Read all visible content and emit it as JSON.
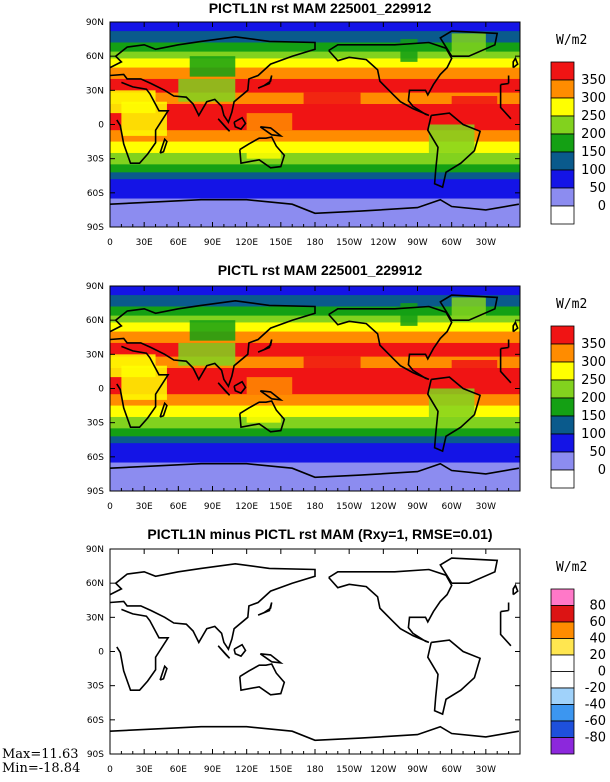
{
  "panels": [
    {
      "title": "PICTL1N rst MAM 225001_229912",
      "units": "W/m2",
      "colorbar": {
        "colors": [
          "#ffffff",
          "#8c8cf0",
          "#1414e6",
          "#0a5a8c",
          "#14a014",
          "#82d21e",
          "#ffff00",
          "#ff8c00",
          "#f01414"
        ],
        "labels": [
          "0",
          "50",
          "100",
          "150",
          "200",
          "250",
          "300",
          "350"
        ]
      },
      "kind": "field"
    },
    {
      "title": "PICTL rst MAM 225001_229912",
      "units": "W/m2",
      "colorbar": {
        "colors": [
          "#ffffff",
          "#8c8cf0",
          "#1414e6",
          "#0a5a8c",
          "#14a014",
          "#82d21e",
          "#ffff00",
          "#ff8c00",
          "#f01414"
        ],
        "labels": [
          "0",
          "50",
          "100",
          "150",
          "200",
          "250",
          "300",
          "350"
        ]
      },
      "kind": "field"
    },
    {
      "title": "PICTL1N minus PICTL rst MAM (Rxy=1, RMSE=0.01)",
      "units": "W/m2",
      "colorbar": {
        "colors": [
          "#8c28dc",
          "#1e50dc",
          "#3c96f0",
          "#a0d2fa",
          "#ffffff",
          "#ffffff",
          "#ffe650",
          "#ff8c00",
          "#dc1414",
          "#ff78c8"
        ],
        "labels": [
          "-80",
          "-60",
          "-40",
          "-20",
          "0",
          "20",
          "40",
          "60",
          "80"
        ]
      },
      "kind": "diff",
      "stats": {
        "max": "Max=11.63",
        "min": "Min=-18.84"
      }
    }
  ],
  "axes": {
    "lat_ticks": [
      "90N",
      "60N",
      "30N",
      "0",
      "30S",
      "60S",
      "90S"
    ],
    "lon_ticks": [
      "0",
      "30E",
      "60E",
      "90E",
      "120E",
      "150E",
      "180",
      "150W",
      "120W",
      "90W",
      "60W",
      "30W"
    ]
  },
  "chart_data": [
    {
      "type": "heatmap",
      "title": "PICTL1N rst MAM 225001_229912",
      "units": "W/m2",
      "xlim": [
        0,
        360
      ],
      "ylim": [
        -90,
        90
      ],
      "contour_levels": [
        0,
        50,
        100,
        150,
        200,
        250,
        300,
        350
      ],
      "zonal_mean_approx": {
        "lat": [
          90,
          75,
          60,
          45,
          30,
          15,
          0,
          -15,
          -30,
          -45,
          -60,
          -75,
          -90
        ],
        "rst": [
          40,
          110,
          180,
          270,
          330,
          360,
          355,
          350,
          310,
          230,
          120,
          40,
          25
        ]
      }
    },
    {
      "type": "heatmap",
      "title": "PICTL rst MAM 225001_229912",
      "units": "W/m2",
      "xlim": [
        0,
        360
      ],
      "ylim": [
        -90,
        90
      ],
      "contour_levels": [
        0,
        50,
        100,
        150,
        200,
        250,
        300,
        350
      ],
      "zonal_mean_approx": {
        "lat": [
          90,
          75,
          60,
          45,
          30,
          15,
          0,
          -15,
          -30,
          -45,
          -60,
          -75,
          -90
        ],
        "rst": [
          40,
          110,
          180,
          270,
          330,
          360,
          355,
          350,
          310,
          230,
          120,
          40,
          25
        ]
      }
    },
    {
      "type": "heatmap",
      "title": "PICTL1N minus PICTL rst MAM (Rxy=1, RMSE=0.01)",
      "units": "W/m2",
      "xlim": [
        0,
        360
      ],
      "ylim": [
        -90,
        90
      ],
      "contour_levels": [
        -80,
        -60,
        -40,
        -20,
        0,
        20,
        40,
        60,
        80
      ],
      "max": 11.63,
      "min": -18.84,
      "rxy": 1,
      "rmse": 0.01
    }
  ]
}
